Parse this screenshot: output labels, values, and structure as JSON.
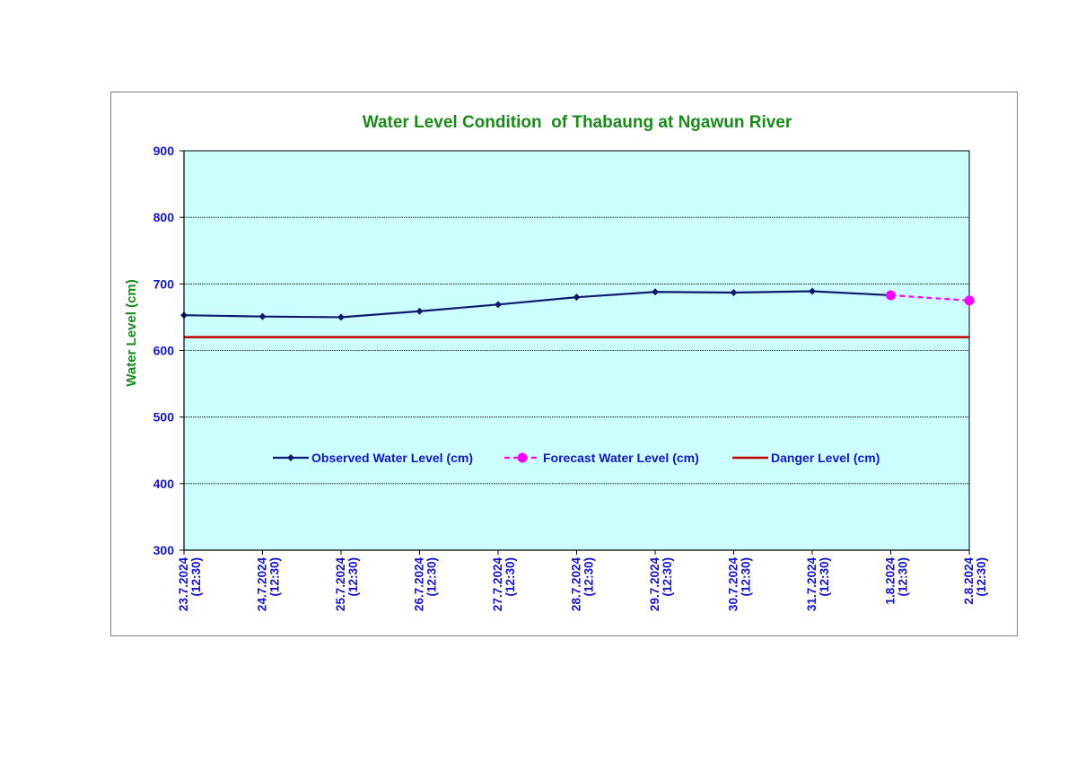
{
  "chart_data": {
    "type": "line",
    "title": "Water Level Condition  of Thabaung at Ngawun River",
    "xlabel": "",
    "ylabel": "Water Level (cm)",
    "ylim": [
      300,
      900
    ],
    "yticks": [
      "900",
      "800",
      "700",
      "600",
      "500",
      "400",
      "300"
    ],
    "grid": true,
    "legend_position": "center",
    "categories": [
      [
        "23.7.2024",
        "(12:30)"
      ],
      [
        "24.7.2024",
        "(12:30)"
      ],
      [
        "25.7.2024",
        "(12:30)"
      ],
      [
        "26.7.2024",
        "(12:30)"
      ],
      [
        "27.7.2024",
        "(12:30)"
      ],
      [
        "28.7.2024",
        "(12:30)"
      ],
      [
        "29.7.2024",
        "(12:30)"
      ],
      [
        "30.7.2024",
        "(12:30)"
      ],
      [
        "31.7.2024",
        "(12:30)"
      ],
      [
        "1.8.2024",
        "(12:30)"
      ],
      [
        "2.8.2024",
        "(12:30)"
      ]
    ],
    "series": [
      {
        "name": "Observed Water Level (cm)",
        "color": "#0f1a6e",
        "style": "solid",
        "marker": "diamond",
        "values": [
          653,
          651,
          650,
          659,
          669,
          680,
          688,
          687,
          689,
          683,
          null
        ]
      },
      {
        "name": "Forecast Water Level (cm)",
        "color": "#ff00ff",
        "style": "dashed",
        "marker": "circle",
        "values": [
          null,
          null,
          null,
          null,
          null,
          null,
          null,
          null,
          null,
          683,
          675
        ]
      },
      {
        "name": "Danger Level (cm)",
        "color": "#c00000",
        "style": "solid",
        "marker": "none",
        "values": [
          620,
          620,
          620,
          620,
          620,
          620,
          620,
          620,
          620,
          620,
          620
        ]
      }
    ],
    "colors": {
      "plot_background": "#ccffff",
      "title": "#1a8a1a",
      "ticks": "#1414c8"
    }
  }
}
